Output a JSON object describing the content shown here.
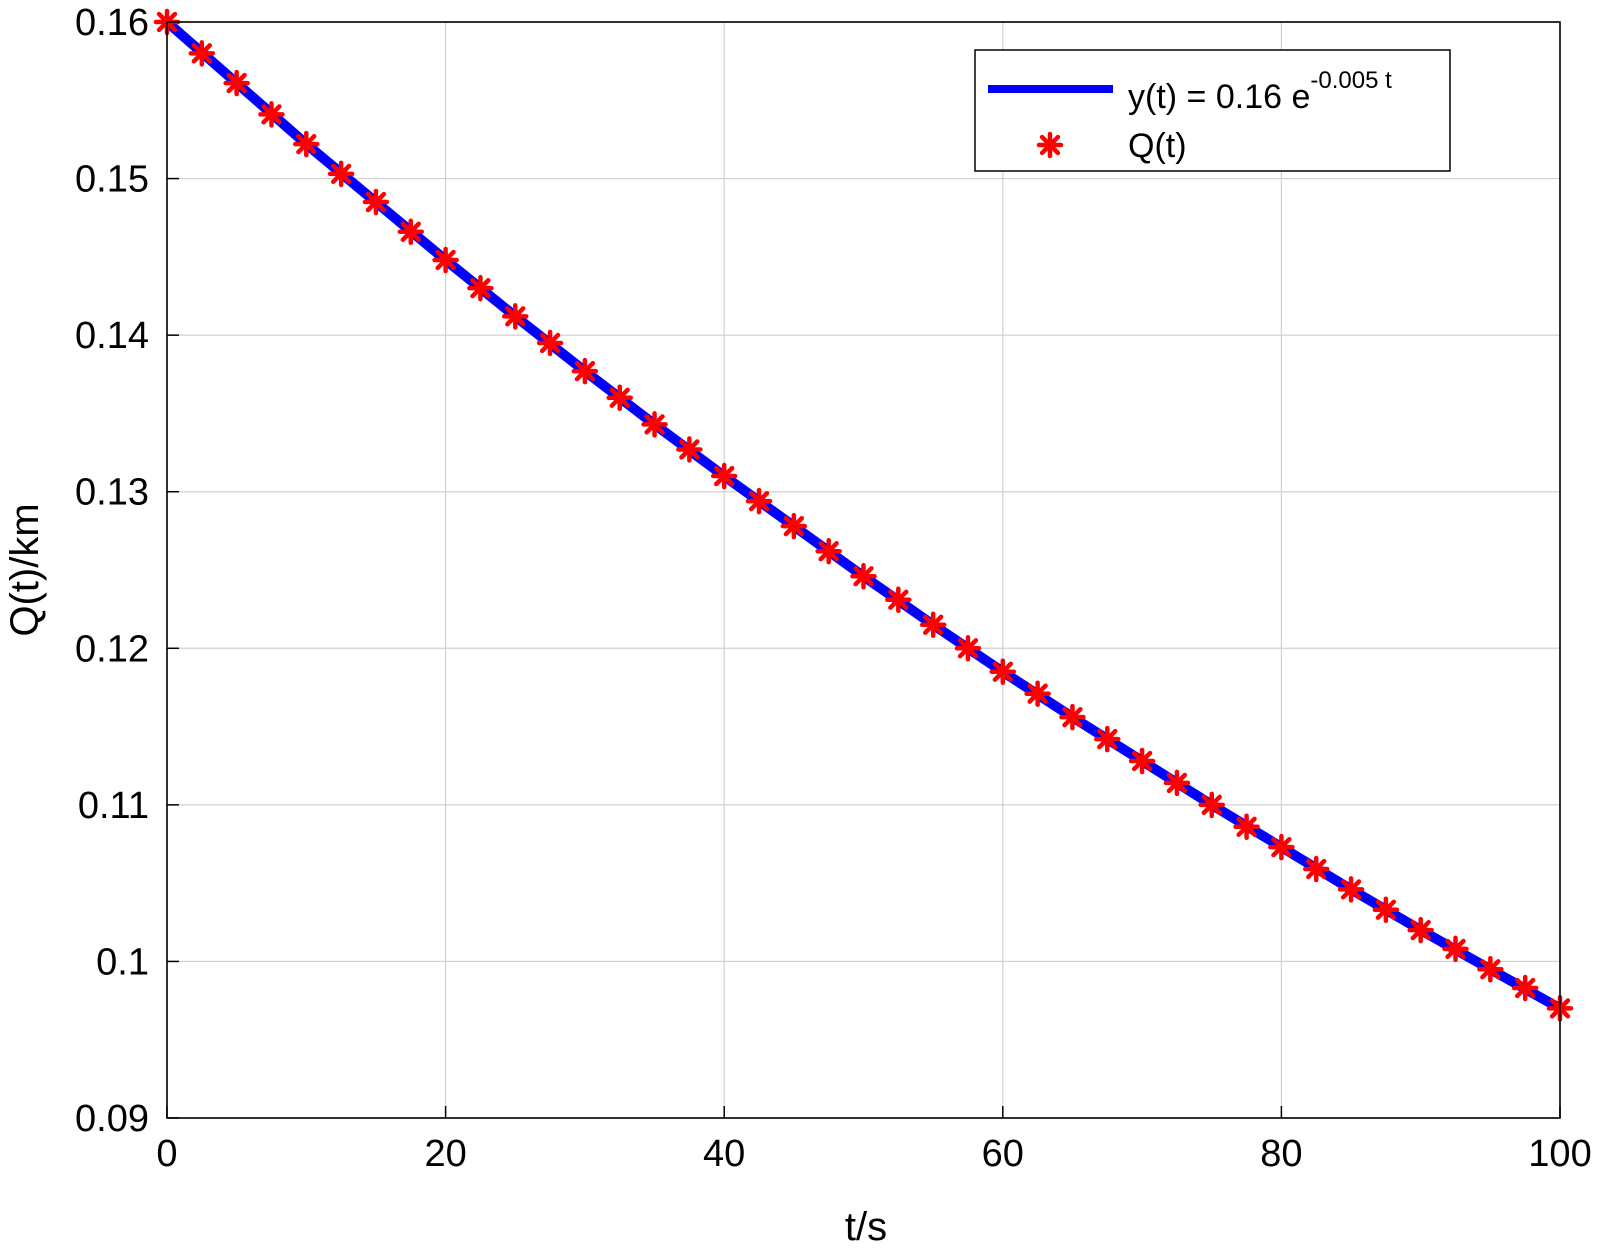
{
  "chart_data": {
    "type": "line",
    "title": "",
    "xlabel": "t/s",
    "ylabel": "Q(t)/km",
    "xlim": [
      0,
      100
    ],
    "ylim": [
      0.09,
      0.16
    ],
    "x_ticks": [
      0,
      20,
      40,
      60,
      80,
      100
    ],
    "x_tick_labels": [
      "0",
      "20",
      "40",
      "60",
      "80",
      "100"
    ],
    "y_ticks": [
      0.09,
      0.1,
      0.11,
      0.12,
      0.13,
      0.14,
      0.15,
      0.16
    ],
    "y_tick_labels": [
      "0.09",
      "0.1",
      "0.11",
      "0.12",
      "0.13",
      "0.14",
      "0.15",
      "0.16"
    ],
    "grid": true,
    "legend_position": "top-right",
    "legend": {
      "line_label": "y(t) = 0.16 e",
      "line_label_exponent": "-0.005 t",
      "marker_label": "Q(t)"
    },
    "series": [
      {
        "name": "y(t) = 0.16 e^-0.005 t",
        "style": "line",
        "color": "#0000ff",
        "x": [
          0,
          5,
          10,
          15,
          20,
          25,
          30,
          35,
          40,
          45,
          50,
          55,
          60,
          65,
          70,
          75,
          80,
          85,
          90,
          95,
          100
        ],
        "y": [
          0.16,
          0.1561,
          0.1522,
          0.1485,
          0.1448,
          0.1412,
          0.1377,
          0.1343,
          0.131,
          0.1278,
          0.1246,
          0.1215,
          0.1185,
          0.1156,
          0.1128,
          0.11,
          0.1073,
          0.1046,
          0.102,
          0.0995,
          0.097
        ]
      },
      {
        "name": "Q(t)",
        "style": "marker",
        "marker": "asterisk",
        "color": "#ff0000",
        "x": [
          0,
          2.5,
          5,
          7.5,
          10,
          12.5,
          15,
          17.5,
          20,
          22.5,
          25,
          27.5,
          30,
          32.5,
          35,
          37.5,
          40,
          42.5,
          45,
          47.5,
          50,
          52.5,
          55,
          57.5,
          60,
          62.5,
          65,
          67.5,
          70,
          72.5,
          75,
          77.5,
          80,
          82.5,
          85,
          87.5,
          90,
          92.5,
          95,
          97.5,
          100
        ],
        "y": [
          0.16,
          0.158,
          0.1561,
          0.1541,
          0.1522,
          0.1503,
          0.1485,
          0.1466,
          0.1448,
          0.143,
          0.1412,
          0.1395,
          0.1377,
          0.136,
          0.1343,
          0.1327,
          0.131,
          0.1294,
          0.1278,
          0.1262,
          0.1246,
          0.1231,
          0.1215,
          0.12,
          0.1185,
          0.1171,
          0.1156,
          0.1142,
          0.1128,
          0.1114,
          0.11,
          0.1086,
          0.1073,
          0.1059,
          0.1046,
          0.1033,
          0.102,
          0.1008,
          0.0995,
          0.0983,
          0.097
        ]
      }
    ]
  }
}
